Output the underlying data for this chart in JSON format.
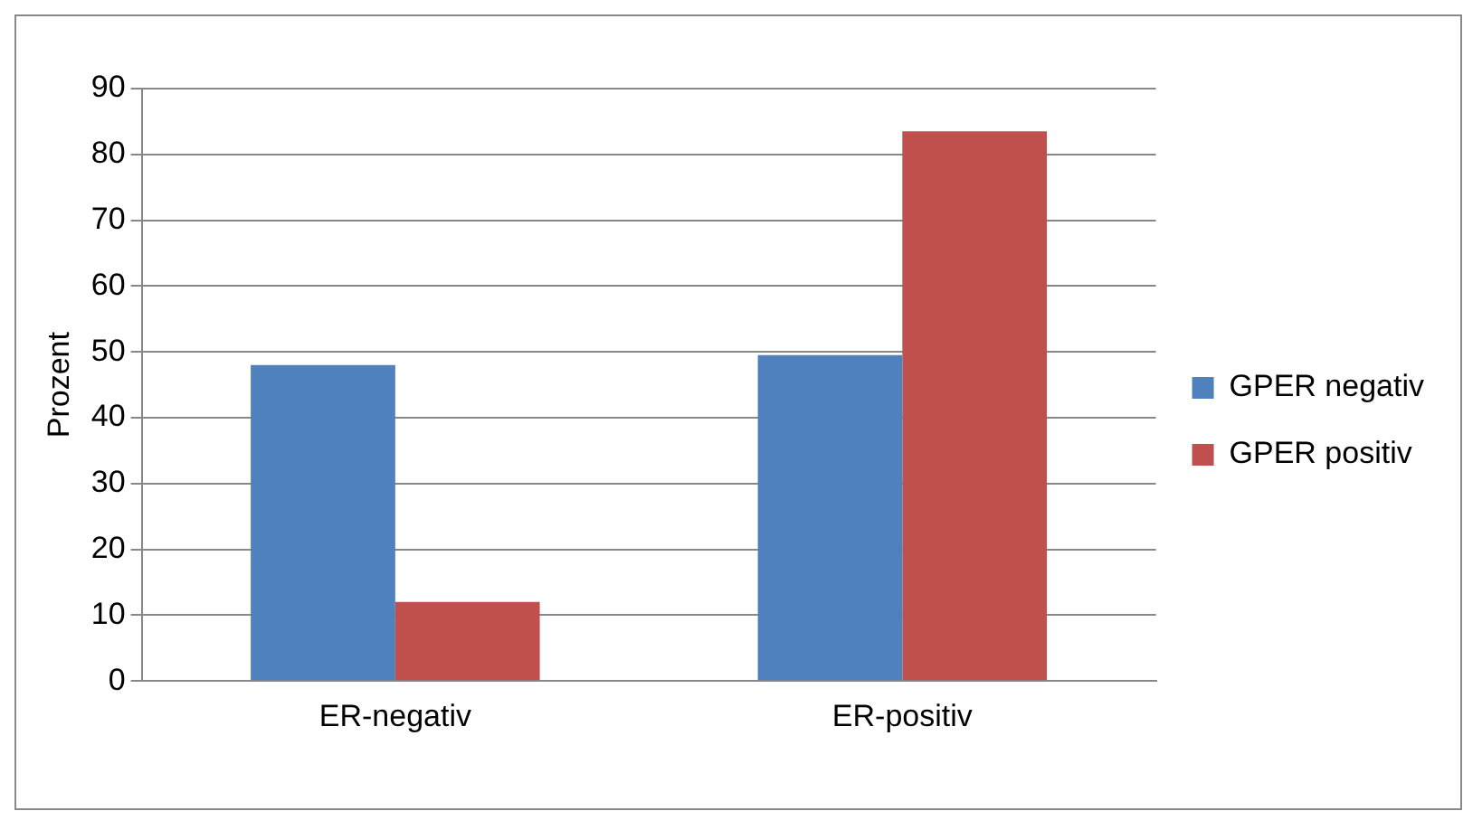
{
  "chart_data": {
    "type": "bar",
    "ylabel": "Prozent",
    "categories": [
      "ER-negativ",
      "ER-positiv"
    ],
    "series": [
      {
        "name": "GPER negativ",
        "color": "#4f81bd",
        "values": [
          48,
          49.5
        ]
      },
      {
        "name": "GPER positiv",
        "color": "#c0504d",
        "values": [
          12,
          83.5
        ]
      }
    ],
    "ylim": [
      0,
      90
    ],
    "yticks": [
      0,
      10,
      20,
      30,
      40,
      50,
      60,
      70,
      80,
      90
    ],
    "grid": "y",
    "legend": "right"
  }
}
